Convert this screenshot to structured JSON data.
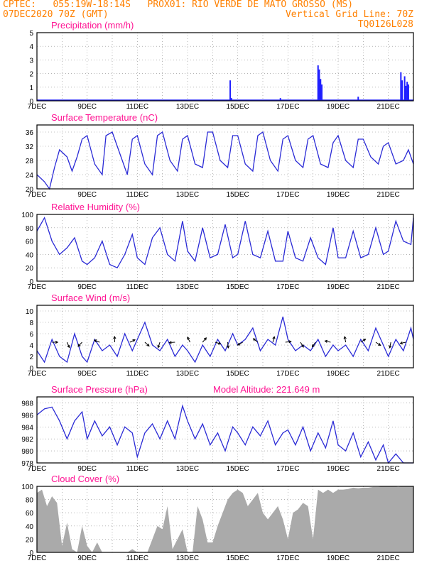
{
  "header": {
    "line1_left": "CPTEC:   055:19W-18:14S   PROX01: RIO VERDE DE MATO GROSSO (MS)",
    "line2_left": "07DEC2020 70Z (GMT)",
    "line2_right": "Vertical Grid Line: 70Z",
    "line3_right": "TQ0126L028"
  },
  "chart_data": [
    {
      "type": "bar",
      "title": "Precipitation (mm/h)",
      "ylim": [
        0,
        5
      ],
      "yticks": [
        0,
        1,
        2,
        3,
        4,
        5
      ],
      "xticks": [
        "7DEC",
        "9DEC",
        "11DEC",
        "13DEC",
        "15DEC",
        "17DEC",
        "19DEC",
        "21DEC"
      ],
      "grid": true,
      "bars": [
        {
          "day": 14.7,
          "value": 1.5
        },
        {
          "day": 14.75,
          "value": 0.2
        },
        {
          "day": 16.7,
          "value": 0.2
        },
        {
          "day": 18.2,
          "value": 2.6
        },
        {
          "day": 18.25,
          "value": 2.3
        },
        {
          "day": 18.3,
          "value": 1.6
        },
        {
          "day": 18.35,
          "value": 1.2
        },
        {
          "day": 19.8,
          "value": 0.3
        },
        {
          "day": 21.5,
          "value": 2.1
        },
        {
          "day": 21.55,
          "value": 1.5
        },
        {
          "day": 21.65,
          "value": 1.8
        },
        {
          "day": 21.7,
          "value": 1.1
        },
        {
          "day": 21.75,
          "value": 1.4
        },
        {
          "day": 21.8,
          "value": 1.2
        }
      ]
    },
    {
      "type": "line",
      "title": "Surface Temperature (nC)",
      "ylim": [
        20,
        38
      ],
      "yticks": [
        20,
        24,
        28,
        32,
        36
      ],
      "xticks": [
        "7DEC",
        "9DEC",
        "11DEC",
        "13DEC",
        "15DEC",
        "17DEC",
        "19DEC",
        "21DEC"
      ],
      "grid": true,
      "x": [
        7,
        7.3,
        7.5,
        7.7,
        7.9,
        8.2,
        8.4,
        8.6,
        8.8,
        9.0,
        9.3,
        9.6,
        9.75,
        10.0,
        10.4,
        10.6,
        10.8,
        11.0,
        11.3,
        11.6,
        11.8,
        12.0,
        12.3,
        12.6,
        12.8,
        13.0,
        13.3,
        13.6,
        13.8,
        14.0,
        14.3,
        14.6,
        14.8,
        15.0,
        15.3,
        15.6,
        15.8,
        16.0,
        16.3,
        16.6,
        16.8,
        17.0,
        17.3,
        17.6,
        17.8,
        18.0,
        18.3,
        18.6,
        18.8,
        19.0,
        19.3,
        19.6,
        19.8,
        20.0,
        20.3,
        20.6,
        20.8,
        21.0,
        21.3,
        21.6,
        21.8,
        22.0
      ],
      "values": [
        24,
        22,
        20,
        26,
        31,
        29,
        25,
        29,
        34,
        35,
        27,
        24,
        35,
        36,
        28,
        24,
        34,
        35,
        27,
        24,
        35,
        36,
        28,
        25,
        34,
        35,
        27,
        26,
        36,
        36,
        28,
        26,
        35,
        35,
        27,
        25,
        35,
        36,
        28,
        25,
        34,
        35,
        28,
        26,
        34,
        35,
        27,
        26,
        33,
        35,
        28,
        26,
        34,
        34,
        29,
        27,
        32,
        33,
        27,
        28,
        31,
        27
      ]
    },
    {
      "type": "line",
      "title": "Relative Humidity (%)",
      "ylim": [
        0,
        100
      ],
      "yticks": [
        0,
        20,
        40,
        60,
        80,
        100
      ],
      "xticks": [
        "7DEC",
        "9DEC",
        "11DEC",
        "13DEC",
        "15DEC",
        "17DEC",
        "19DEC",
        "21DEC"
      ],
      "grid": true,
      "x": [
        7,
        7.3,
        7.6,
        7.9,
        8.2,
        8.5,
        8.8,
        9.0,
        9.3,
        9.6,
        9.9,
        10.2,
        10.5,
        10.8,
        11.0,
        11.3,
        11.6,
        11.9,
        12.2,
        12.5,
        12.8,
        13.0,
        13.3,
        13.6,
        13.9,
        14.2,
        14.5,
        14.8,
        15.0,
        15.3,
        15.6,
        15.9,
        16.2,
        16.5,
        16.8,
        17.0,
        17.3,
        17.6,
        17.9,
        18.2,
        18.5,
        18.8,
        19.0,
        19.3,
        19.6,
        19.9,
        20.2,
        20.5,
        20.8,
        21.0,
        21.3,
        21.6,
        21.9,
        22.0
      ],
      "values": [
        75,
        95,
        60,
        40,
        50,
        65,
        30,
        25,
        35,
        60,
        25,
        20,
        40,
        70,
        35,
        25,
        65,
        80,
        40,
        30,
        90,
        45,
        30,
        80,
        35,
        40,
        85,
        35,
        40,
        90,
        40,
        35,
        75,
        30,
        30,
        75,
        35,
        30,
        65,
        35,
        25,
        80,
        35,
        35,
        75,
        35,
        40,
        80,
        40,
        45,
        90,
        60,
        55,
        95
      ]
    },
    {
      "type": "line",
      "title": "Surface Wind (m/s)",
      "ylim": [
        0,
        11
      ],
      "yticks": [
        0,
        2,
        4,
        6,
        8,
        10
      ],
      "xticks": [
        "7DEC",
        "9DEC",
        "11DEC",
        "13DEC",
        "15DEC",
        "17DEC",
        "19DEC",
        "21DEC"
      ],
      "grid": true,
      "x": [
        7,
        7.3,
        7.6,
        7.9,
        8.2,
        8.5,
        8.8,
        9.0,
        9.3,
        9.6,
        9.9,
        10.2,
        10.5,
        10.8,
        11.0,
        11.3,
        11.6,
        11.9,
        12.2,
        12.5,
        12.8,
        13.0,
        13.3,
        13.6,
        13.9,
        14.2,
        14.5,
        14.8,
        15.0,
        15.3,
        15.6,
        15.9,
        16.2,
        16.5,
        16.8,
        17.0,
        17.3,
        17.6,
        17.9,
        18.2,
        18.5,
        18.8,
        19.0,
        19.3,
        19.6,
        19.9,
        20.2,
        20.5,
        20.8,
        21.0,
        21.3,
        21.6,
        21.9,
        22.0
      ],
      "values": [
        3,
        1,
        5,
        2,
        1,
        6,
        2,
        1,
        5,
        3,
        4,
        2,
        6,
        3,
        5,
        8,
        4,
        3,
        5,
        2,
        4,
        3,
        1,
        4,
        2,
        5,
        3,
        6,
        4,
        5,
        7,
        3,
        5,
        4,
        9,
        5,
        3,
        4,
        3,
        5,
        2,
        4,
        3,
        4,
        2,
        5,
        3,
        7,
        4,
        2,
        5,
        3,
        7,
        5
      ],
      "arrow_days": [
        7.6,
        8.2,
        8.8,
        9.5,
        10.1,
        10.7,
        11.3,
        11.9,
        12.5,
        13.1,
        13.6,
        14.1,
        14.6,
        15.2,
        15.8,
        16.4,
        16.9,
        17.5,
        18.1,
        18.7,
        19.3,
        19.9,
        20.5,
        21.1,
        21.7
      ]
    },
    {
      "type": "line",
      "title": "Surface Pressure (hPa)",
      "annotation": "Model Altitude: 221.649  m",
      "ylim": [
        978,
        989
      ],
      "yticks": [
        978,
        980,
        982,
        984,
        986,
        988
      ],
      "xticks": [
        "7DEC",
        "9DEC",
        "11DEC",
        "13DEC",
        "15DEC",
        "17DEC",
        "19DEC",
        "21DEC"
      ],
      "grid": true,
      "x": [
        7,
        7.3,
        7.6,
        7.9,
        8.2,
        8.5,
        8.8,
        9.0,
        9.3,
        9.6,
        9.9,
        10.2,
        10.5,
        10.8,
        11.0,
        11.3,
        11.6,
        11.9,
        12.2,
        12.5,
        12.8,
        13.0,
        13.3,
        13.6,
        13.9,
        14.2,
        14.5,
        14.8,
        15.0,
        15.3,
        15.6,
        15.9,
        16.2,
        16.5,
        16.8,
        17.0,
        17.3,
        17.6,
        17.9,
        18.2,
        18.5,
        18.8,
        19.0,
        19.3,
        19.6,
        19.9,
        20.2,
        20.5,
        20.8,
        21.0,
        21.3,
        21.6,
        21.9,
        22.0
      ],
      "values": [
        986,
        987,
        987.3,
        985,
        982,
        985,
        986.5,
        982,
        985,
        982.5,
        984,
        981,
        984,
        983,
        979,
        983,
        984.5,
        982,
        985,
        982,
        987.5,
        985,
        982,
        984.5,
        981,
        983,
        980,
        984,
        983,
        981,
        984,
        982.5,
        985,
        981,
        983,
        983.5,
        981,
        984,
        980,
        983,
        980.5,
        985,
        981,
        980,
        983,
        979,
        981.5,
        978.5,
        981,
        978,
        979.5,
        978,
        977.5,
        978
      ]
    },
    {
      "type": "area",
      "title": "Cloud Cover (%)",
      "ylim": [
        0,
        100
      ],
      "yticks": [
        0,
        20,
        40,
        60,
        80,
        100
      ],
      "xticks": [
        "7DEC",
        "9DEC",
        "11DEC",
        "13DEC",
        "15DEC",
        "17DEC",
        "19DEC",
        "21DEC"
      ],
      "grid": true,
      "x": [
        7,
        7.2,
        7.4,
        7.6,
        7.8,
        8.0,
        8.2,
        8.4,
        8.6,
        8.8,
        9.0,
        9.2,
        9.4,
        9.6,
        9.8,
        10.0,
        10.2,
        10.4,
        10.6,
        10.8,
        11.0,
        11.2,
        11.4,
        11.6,
        11.8,
        12.0,
        12.2,
        12.4,
        12.6,
        12.8,
        13.0,
        13.2,
        13.4,
        13.6,
        13.8,
        14.0,
        14.2,
        14.4,
        14.6,
        14.8,
        15.0,
        15.2,
        15.4,
        15.6,
        15.8,
        16.0,
        16.2,
        16.4,
        16.6,
        16.8,
        17.0,
        17.2,
        17.4,
        17.6,
        17.8,
        18.0,
        18.2,
        18.4,
        18.6,
        18.8,
        19.0,
        19.2,
        19.4,
        19.6,
        19.8,
        20.0,
        20.2,
        20.4,
        20.6,
        20.8,
        21.0,
        21.2,
        21.4,
        21.6,
        21.8,
        22.0
      ],
      "values": [
        90,
        95,
        70,
        85,
        75,
        10,
        45,
        5,
        0,
        40,
        10,
        0,
        15,
        0,
        0,
        0,
        0,
        0,
        0,
        5,
        0,
        0,
        0,
        20,
        40,
        35,
        70,
        5,
        20,
        35,
        0,
        0,
        70,
        50,
        15,
        15,
        40,
        60,
        80,
        90,
        95,
        90,
        70,
        80,
        90,
        60,
        50,
        60,
        70,
        50,
        20,
        60,
        65,
        75,
        70,
        20,
        95,
        90,
        95,
        90,
        95,
        95,
        96,
        98,
        97,
        98,
        98,
        99,
        99,
        100,
        100,
        100,
        99,
        100,
        100,
        100
      ]
    }
  ]
}
